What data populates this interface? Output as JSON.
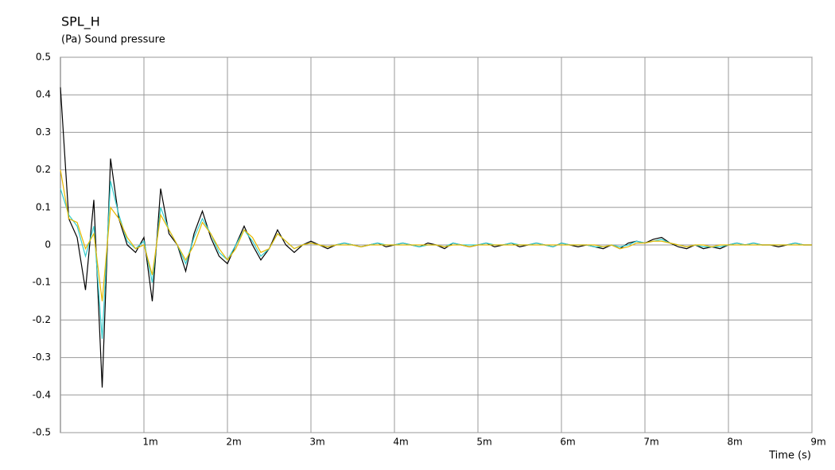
{
  "chart_data": {
    "type": "line",
    "title": "SPL_H",
    "subtitle": "(Pa)  Sound pressure",
    "x_label": "Time  (s)",
    "x": [
      0,
      0.0001,
      0.0002,
      0.0003,
      0.0004,
      0.0005,
      0.0006,
      0.0007,
      0.0008,
      0.0009,
      0.001,
      0.0011,
      0.0012,
      0.0013,
      0.0014,
      0.0015,
      0.0016,
      0.0017,
      0.0018,
      0.0019,
      0.002,
      0.0021,
      0.0022,
      0.0023,
      0.0024,
      0.0025,
      0.0026,
      0.0027,
      0.0028,
      0.0029,
      0.003,
      0.0031,
      0.0032,
      0.0033,
      0.0034,
      0.0035,
      0.0036,
      0.0037,
      0.0038,
      0.0039,
      0.004,
      0.0041,
      0.0042,
      0.0043,
      0.0044,
      0.0045,
      0.0046,
      0.0047,
      0.0048,
      0.0049,
      0.005,
      0.0051,
      0.0052,
      0.0053,
      0.0054,
      0.0055,
      0.0056,
      0.0057,
      0.0058,
      0.0059,
      0.006,
      0.0061,
      0.0062,
      0.0063,
      0.0064,
      0.0065,
      0.0066,
      0.0067,
      0.0068,
      0.0069,
      0.007,
      0.0071,
      0.0072,
      0.0073,
      0.0074,
      0.0075,
      0.0076,
      0.0077,
      0.0078,
      0.0079,
      0.008,
      0.0081,
      0.0082,
      0.0083,
      0.0084,
      0.0085,
      0.0086,
      0.0087,
      0.0088,
      0.0089,
      0.009
    ],
    "series": [
      {
        "color": "#000000",
        "values": [
          0.42,
          0.07,
          0.02,
          -0.12,
          0.12,
          -0.38,
          0.23,
          0.07,
          0.0,
          -0.02,
          0.02,
          -0.15,
          0.15,
          0.03,
          0.0,
          -0.07,
          0.03,
          0.09,
          0.02,
          -0.03,
          -0.05,
          0.0,
          0.05,
          0.0,
          -0.04,
          -0.01,
          0.04,
          0.0,
          -0.02,
          0.0,
          0.01,
          0,
          -0.01,
          0,
          0.005,
          0,
          -0.005,
          0,
          0.005,
          -0.005,
          0,
          0.005,
          0,
          -0.005,
          0.005,
          0,
          -0.01,
          0.005,
          0,
          -0.005,
          0,
          0.005,
          -0.005,
          0,
          0.005,
          -0.005,
          0,
          0.005,
          0,
          -0.005,
          0.005,
          0,
          -0.005,
          0,
          -0.005,
          -0.01,
          0,
          -0.01,
          0.005,
          0.01,
          0.005,
          0.015,
          0.02,
          0.005,
          -0.005,
          -0.01,
          0,
          -0.01,
          -0.005,
          -0.01,
          0,
          0.005,
          0,
          0.005,
          0,
          0,
          -0.005,
          0,
          0.005,
          0,
          0
        ]
      },
      {
        "color": "#33cccc",
        "values": [
          0.15,
          0.08,
          0.05,
          -0.03,
          0.05,
          -0.25,
          0.17,
          0.08,
          0.01,
          -0.01,
          0.01,
          -0.1,
          0.1,
          0.04,
          0.0,
          -0.05,
          0.02,
          0.07,
          0.03,
          -0.02,
          -0.04,
          0.0,
          0.04,
          0.01,
          -0.03,
          -0.01,
          0.03,
          0.01,
          -0.01,
          0.0,
          0.005,
          0,
          -0.005,
          0,
          0.005,
          0,
          -0.005,
          0,
          0.005,
          0,
          0,
          0.005,
          0,
          -0.005,
          0,
          0,
          -0.005,
          0.005,
          0,
          0,
          0,
          0.005,
          0,
          0,
          0.005,
          0,
          0,
          0.005,
          0,
          -0.005,
          0.005,
          0,
          0,
          0,
          -0.005,
          -0.005,
          0,
          -0.005,
          0,
          0.01,
          0.005,
          0.01,
          0.015,
          0.005,
          0,
          -0.005,
          0,
          -0.005,
          -0.005,
          -0.005,
          0,
          0.005,
          0,
          0.005,
          0,
          0,
          0,
          0,
          0.005,
          0,
          0
        ]
      },
      {
        "color": "#e6b800",
        "values": [
          0.2,
          0.07,
          0.06,
          -0.01,
          0.03,
          -0.15,
          0.1,
          0.07,
          0.02,
          -0.01,
          0.0,
          -0.08,
          0.08,
          0.04,
          0.0,
          -0.04,
          0.0,
          0.06,
          0.03,
          -0.01,
          -0.04,
          -0.01,
          0.04,
          0.02,
          -0.02,
          -0.01,
          0.03,
          0.01,
          -0.01,
          0.0,
          0.005,
          0,
          -0.005,
          0,
          0,
          0,
          -0.005,
          0,
          0,
          0,
          0,
          0,
          0,
          0,
          0,
          0,
          -0.005,
          0,
          0,
          -0.005,
          0,
          0,
          0,
          0,
          0,
          0,
          0,
          0,
          0,
          0,
          0,
          0,
          0,
          0,
          0,
          -0.005,
          0,
          -0.01,
          -0.005,
          0.005,
          0.005,
          0.01,
          0.01,
          0.005,
          0,
          -0.005,
          0,
          0,
          -0.005,
          0,
          0,
          0,
          0,
          0,
          0,
          0,
          0,
          0,
          0,
          0,
          0
        ]
      }
    ],
    "xlim": [
      0,
      0.009
    ],
    "ylim": [
      -0.5,
      0.5
    ],
    "xticks": [
      {
        "value": 0.001,
        "label": "1m"
      },
      {
        "value": 0.002,
        "label": "2m"
      },
      {
        "value": 0.003,
        "label": "3m"
      },
      {
        "value": 0.004,
        "label": "4m"
      },
      {
        "value": 0.005,
        "label": "5m"
      },
      {
        "value": 0.006,
        "label": "6m"
      },
      {
        "value": 0.007,
        "label": "7m"
      },
      {
        "value": 0.008,
        "label": "8m"
      },
      {
        "value": 0.009,
        "label": "9m"
      }
    ],
    "yticks": [
      -0.5,
      -0.4,
      -0.3,
      -0.2,
      -0.1,
      0,
      0.1,
      0.2,
      0.3,
      0.4,
      0.5
    ],
    "grid": true
  }
}
